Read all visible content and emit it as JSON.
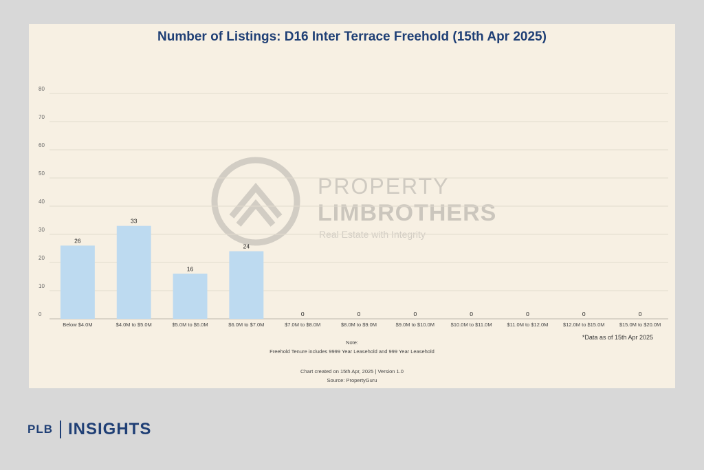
{
  "chart_data": {
    "type": "bar",
    "title": "Number of Listings: D16 Inter Terrace Freehold (15th Apr 2025)",
    "categories": [
      "Below $4.0M",
      "$4.0M to $5.0M",
      "$5.0M to $6.0M",
      "$6.0M to $7.0M",
      "$7.0M to $8.0M",
      "$8.0M to $9.0M",
      "$9.0M to $10.0M",
      "$10.0M to $11.0M",
      "$11.0M to $12.0M",
      "$12.0M to $15.0M",
      "$15.0M to $20.0M"
    ],
    "values": [
      26,
      33,
      16,
      24,
      0,
      0,
      0,
      0,
      0,
      0,
      0
    ],
    "ylim": [
      0,
      80
    ],
    "yticks": [
      0,
      10,
      20,
      30,
      40,
      50,
      60,
      70,
      80
    ],
    "grid": true,
    "bar_color": "#bddaf0"
  },
  "watermark": {
    "line1": "PROPERTY",
    "line2": "LIMBROTHERS",
    "line3": "Real Estate with Integrity"
  },
  "annotations": {
    "as_of": "*Data as of 15th Apr 2025",
    "note_label": "Note:",
    "note_text": "Freehold Tenure includes 9999 Year Leasehold and 999 Year Leasehold",
    "created": "Chart created on 15th Apr, 2025 | Version 1.0",
    "source": "Source: PropertyGuru"
  },
  "brand": {
    "left": "PLB",
    "right": "INSIGHTS",
    "color": "#1f3f75"
  }
}
